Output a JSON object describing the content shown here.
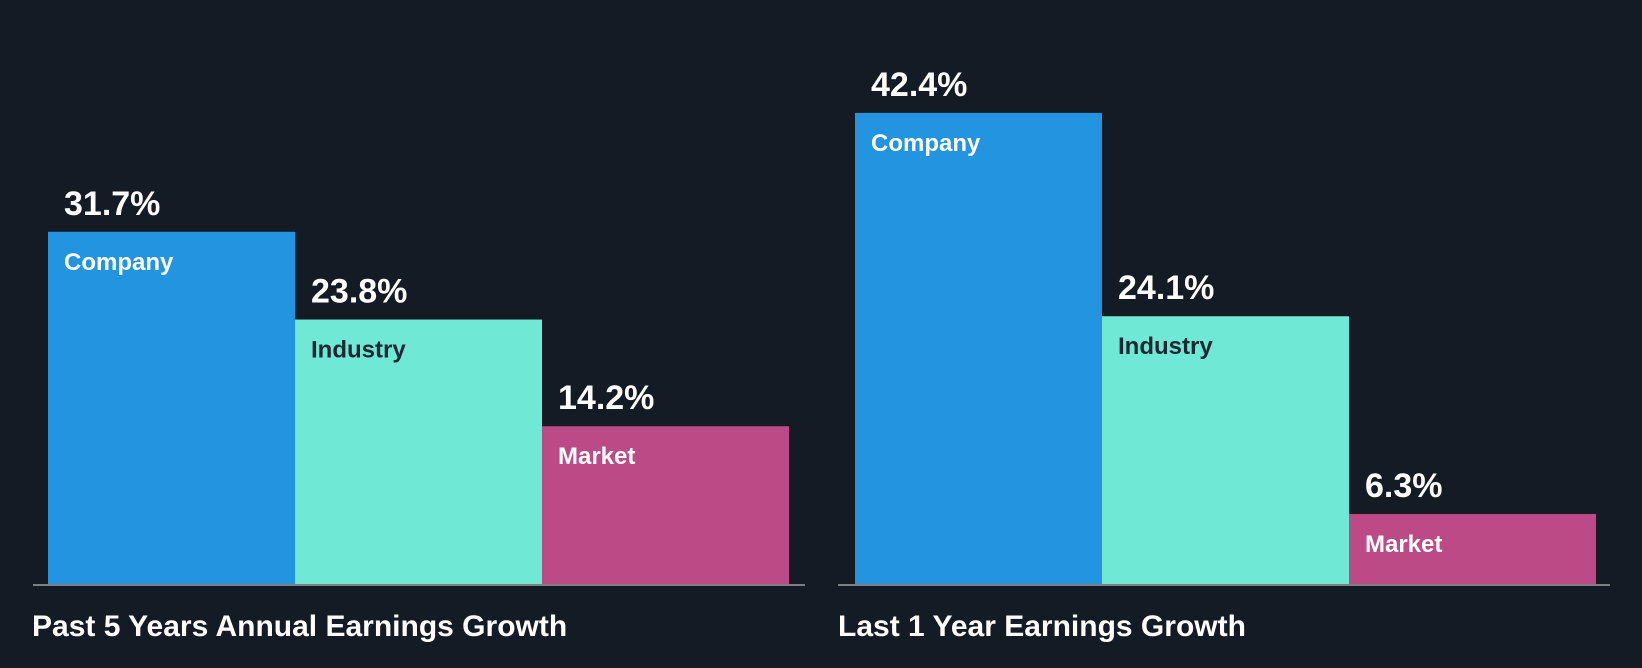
{
  "colors": {
    "background": "#151b24",
    "company": "#2394e0",
    "industry": "#6fe8d6",
    "market": "#bb4a87",
    "baseline": "#7a7f86",
    "label_on_light": "#1c2733",
    "label_on_dark": "#ffffff",
    "value_text": "#ffffff"
  },
  "chart_data": [
    {
      "type": "bar",
      "title": "Past 5 Years Annual Earnings Growth",
      "categories": [
        "Company",
        "Industry",
        "Market"
      ],
      "values": [
        31.7,
        23.8,
        14.2
      ],
      "value_labels": [
        "31.7%",
        "23.8%",
        "14.2%"
      ],
      "unit": "%",
      "ylim": [
        0,
        45
      ],
      "grid": false,
      "legend": "none"
    },
    {
      "type": "bar",
      "title": "Last 1 Year Earnings Growth",
      "categories": [
        "Company",
        "Industry",
        "Market"
      ],
      "values": [
        42.4,
        24.1,
        6.3
      ],
      "value_labels": [
        "42.4%",
        "24.1%",
        "6.3%"
      ],
      "unit": "%",
      "ylim": [
        0,
        45
      ],
      "grid": false,
      "legend": "none"
    }
  ]
}
